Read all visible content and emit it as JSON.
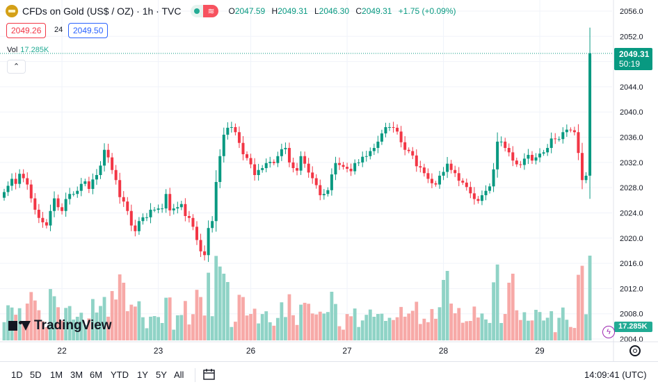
{
  "header": {
    "title": "CFDs on Gold (US$ / OZ) · 1h · TVC",
    "ohlc": {
      "o": "2047.59",
      "h": "2049.31",
      "l": "2046.30",
      "c": "2049.31",
      "change": "+1.75 (+0.09%)"
    }
  },
  "quote": {
    "bid": "2049.26",
    "spread": "24",
    "ask": "2049.50"
  },
  "volume": {
    "label": "Vol",
    "value": "17.285K"
  },
  "last_price": {
    "price": "2049.31",
    "countdown": "50:19"
  },
  "brand": "TradingView",
  "toolbar": {
    "timeframes": [
      "1D",
      "5D",
      "1M",
      "3M",
      "6M",
      "YTD",
      "1Y",
      "5Y",
      "All"
    ],
    "clock": "14:09:41 (UTC)"
  },
  "colors": {
    "up": "#089981",
    "down": "#f23645",
    "vol_up": "#8fd3c6",
    "vol_down": "#f7a9a7",
    "grid": "#f0f3fa"
  },
  "chart_data": {
    "type": "candlestick",
    "timeframe": "1h",
    "x_ticks": [
      "22",
      "23",
      "26",
      "27",
      "28",
      "29"
    ],
    "y_ticks": [
      2004,
      2008,
      2012,
      2016,
      2020,
      2024,
      2028,
      2032,
      2036,
      2040,
      2044,
      2048,
      2052,
      2056
    ],
    "ylim": [
      2004,
      2056
    ],
    "close": [
      2027.3,
      2028.3,
      2029.4,
      2028.6,
      2030.2,
      2029.5,
      2028.5,
      2026.3,
      2024.5,
      2023.2,
      2022.5,
      2022.0,
      2024.3,
      2026.3,
      2024.9,
      2024.3,
      2026.2,
      2027.0,
      2027.0,
      2027.5,
      2028.6,
      2029.0,
      2027.8,
      2029.3,
      2030.0,
      2031.5,
      2034.0,
      2032.8,
      2030.8,
      2029.2,
      2026.5,
      2025.8,
      2024.3,
      2022.0,
      2021.1,
      2022.7,
      2023.3,
      2023.3,
      2024.5,
      2024.5,
      2024.7,
      2024.7,
      2027.0,
      2024.4,
      2024.7,
      2024.9,
      2025.4,
      2023.5,
      2023.2,
      2021.8,
      2019.7,
      2017.9,
      2017.3,
      2021.6,
      2022.7,
      2028.9,
      2033.0,
      2036.4,
      2037.5,
      2037.6,
      2036.8,
      2035.1,
      2033.3,
      2032.7,
      2031.7,
      2030.0,
      2030.8,
      2031.1,
      2031.9,
      2032.1,
      2031.9,
      2033.0,
      2034.1,
      2034.3,
      2032.0,
      2031.1,
      2030.7,
      2033.0,
      2031.8,
      2030.4,
      2029.5,
      2028.4,
      2026.8,
      2027.0,
      2027.6,
      2030.1,
      2031.9,
      2031.6,
      2031.3,
      2031.0,
      2030.6,
      2031.9,
      2032.0,
      2032.9,
      2033.0,
      2033.8,
      2034.3,
      2035.3,
      2036.6,
      2037.6,
      2037.6,
      2037.5,
      2036.9,
      2035.2,
      2034.0,
      2033.8,
      2033.1,
      2031.4,
      2031.2,
      2030.3,
      2029.4,
      2028.7,
      2028.5,
      2029.9,
      2030.5,
      2031.8,
      2030.8,
      2030.3,
      2029.1,
      2028.8,
      2028.1,
      2027.1,
      2026.2,
      2025.9,
      2026.8,
      2027.5,
      2028.2,
      2030.9,
      2035.3,
      2035.3,
      2034.3,
      2033.6,
      2032.3,
      2031.7,
      2031.6,
      2032.6,
      2033.2,
      2032.3,
      2032.8,
      2033.4,
      2033.6,
      2034.3,
      2035.8,
      2035.7,
      2035.7,
      2036.8,
      2037.2,
      2037.1,
      2036.8,
      2033.5,
      2029.2,
      2029.9,
      2049.3
    ]
  }
}
